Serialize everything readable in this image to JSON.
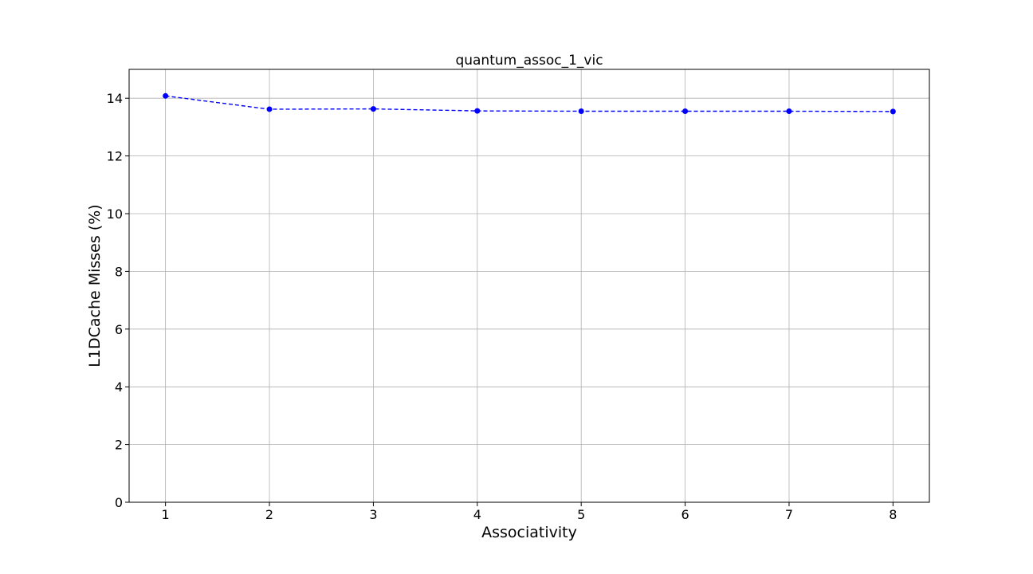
{
  "chart_data": {
    "type": "line",
    "title": "quantum_assoc_1_vic",
    "xlabel": "Associativity",
    "ylabel": "L1DCache Misses (%)",
    "x": [
      1,
      2,
      3,
      4,
      5,
      6,
      7,
      8
    ],
    "series": [
      {
        "values": [
          14.08,
          13.62,
          13.63,
          13.56,
          13.55,
          13.55,
          13.55,
          13.54
        ],
        "color": "#0000ff",
        "line_style": "dashed",
        "marker": "circle"
      }
    ],
    "xticks": [
      "1",
      "2",
      "3",
      "4",
      "5",
      "6",
      "7",
      "8"
    ],
    "yticks": [
      "0",
      "2",
      "4",
      "6",
      "8",
      "10",
      "12",
      "14"
    ],
    "xlim": [
      0.65,
      8.35
    ],
    "ylim": [
      0,
      15
    ],
    "grid": true,
    "legend": "none"
  }
}
